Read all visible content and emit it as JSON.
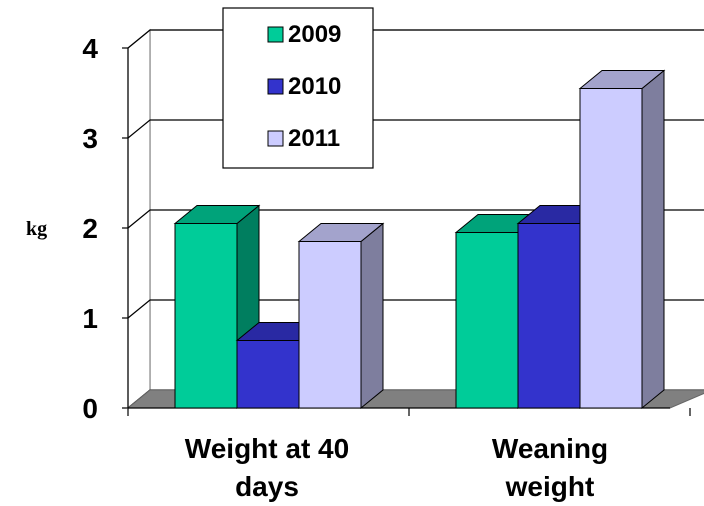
{
  "chart_data": {
    "type": "bar",
    "categories": [
      "Weight at 40 days",
      "Weaning weight"
    ],
    "category_lines": [
      [
        "Weight at 40",
        "days"
      ],
      [
        "Weaning",
        "weight"
      ]
    ],
    "series": [
      {
        "name": "2009",
        "values": [
          2.05,
          1.95
        ],
        "color": "#00CC99"
      },
      {
        "name": "2010",
        "values": [
          0.75,
          2.05
        ],
        "color": "#3333CC"
      },
      {
        "name": "2011",
        "values": [
          1.85,
          3.55
        ],
        "color": "#CCCCFF"
      }
    ],
    "ylabel": "kg",
    "xlabel": "",
    "ylim": [
      0,
      4
    ],
    "yticks": [
      0,
      1,
      2,
      3,
      4
    ],
    "grid": true,
    "legend_position": "top-center",
    "style": "3d-clustered-column"
  }
}
